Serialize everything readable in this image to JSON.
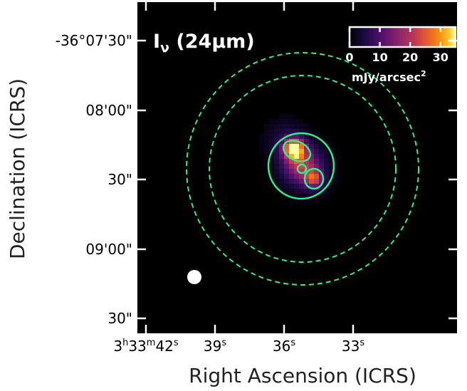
{
  "panel": {
    "title_main": "I",
    "title_sub": "ν",
    "title_tail": " (24μm)"
  },
  "axes": {
    "xlabel": "Right Ascension (ICRS)",
    "ylabel": "Declination (ICRS)",
    "xticks": [
      {
        "pre": "3",
        "s1": "h",
        "mid": "33",
        "s2": "m",
        "post": "42",
        "s3": "s"
      },
      {
        "pre": "",
        "s1": "",
        "mid": "",
        "s2": "",
        "post": "39",
        "s3": "s"
      },
      {
        "pre": "",
        "s1": "",
        "mid": "",
        "s2": "",
        "post": "36",
        "s3": "s"
      },
      {
        "pre": "",
        "s1": "",
        "mid": "",
        "s2": "",
        "post": "33",
        "s3": "s"
      }
    ],
    "yticks": [
      "-36°07'30\"",
      "08'00\"",
      "30\"",
      "09'00\"",
      "30\""
    ]
  },
  "colorbar": {
    "ticks": [
      "0",
      "10",
      "20",
      "30"
    ],
    "unit_main": "mJy/arcsec",
    "unit_sup": "2",
    "vmax": 35,
    "cmap": "inferno"
  },
  "colors": {
    "background": "#000000",
    "aperture": "#2ef08a"
  },
  "source": {
    "peak_value": 34
  }
}
